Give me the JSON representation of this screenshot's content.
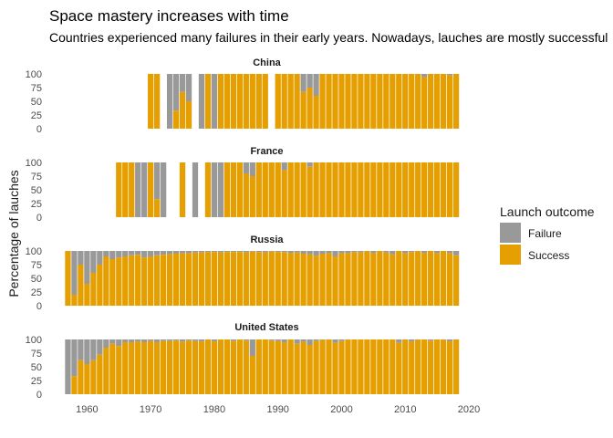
{
  "title": "Space mastery increases with time",
  "subtitle": "Countries experienced many failures in their early years. Nowadays, lauches are mostly successful",
  "chart_data": {
    "type": "bar",
    "stacked": true,
    "ylabel": "Percentage of lauches",
    "x_ticks": [
      1960,
      1970,
      1980,
      1990,
      2000,
      2010,
      2020
    ],
    "xlim": [
      1955.5,
      2021
    ],
    "y_ticks": [
      0,
      25,
      50,
      75,
      100
    ],
    "ylim": [
      0,
      100
    ],
    "legend": {
      "title": "Launch outcome",
      "position": "right",
      "entries": [
        {
          "label": "Failure",
          "color": "#999999"
        },
        {
          "label": "Success",
          "color": "#E69F00"
        }
      ]
    },
    "facets": [
      {
        "name": "China",
        "years": [
          1970,
          1971,
          1973,
          1974,
          1975,
          1976,
          1978,
          1979,
          1980,
          1981,
          1982,
          1983,
          1984,
          1985,
          1986,
          1987,
          1988,
          1990,
          1991,
          1992,
          1993,
          1994,
          1995,
          1996,
          1997,
          1998,
          1999,
          2000,
          2001,
          2002,
          2003,
          2004,
          2005,
          2006,
          2007,
          2008,
          2009,
          2010,
          2011,
          2012,
          2013,
          2014,
          2015,
          2016,
          2017,
          2018
        ],
        "success_pct": [
          100,
          100,
          0,
          33,
          67,
          50,
          0,
          100,
          0,
          100,
          100,
          100,
          100,
          100,
          100,
          100,
          100,
          100,
          100,
          100,
          100,
          67,
          75,
          60,
          100,
          100,
          100,
          100,
          100,
          100,
          100,
          100,
          100,
          100,
          100,
          100,
          100,
          100,
          100,
          100,
          94,
          100,
          100,
          100,
          97,
          100
        ]
      },
      {
        "name": "France",
        "years": [
          1965,
          1966,
          1967,
          1968,
          1969,
          1970,
          1971,
          1972,
          1975,
          1977,
          1979,
          1980,
          1981,
          1982,
          1983,
          1984,
          1985,
          1986,
          1987,
          1988,
          1989,
          1990,
          1991,
          1992,
          1993,
          1994,
          1995,
          1996,
          1997,
          1998,
          1999,
          2000,
          2001,
          2002,
          2003,
          2004,
          2005,
          2006,
          2007,
          2008,
          2009,
          2010,
          2011,
          2012,
          2013,
          2014,
          2015,
          2016,
          2017,
          2018
        ],
        "success_pct": [
          100,
          100,
          100,
          0,
          0,
          100,
          33,
          0,
          100,
          0,
          100,
          0,
          0,
          100,
          100,
          100,
          80,
          75,
          100,
          100,
          100,
          100,
          86,
          100,
          100,
          100,
          92,
          100,
          100,
          100,
          100,
          100,
          100,
          100,
          100,
          100,
          100,
          100,
          100,
          100,
          100,
          100,
          100,
          100,
          100,
          100,
          100,
          100,
          100,
          100
        ]
      },
      {
        "name": "Russia",
        "years": [
          1957,
          1958,
          1959,
          1960,
          1961,
          1962,
          1963,
          1964,
          1965,
          1966,
          1967,
          1968,
          1969,
          1970,
          1971,
          1972,
          1973,
          1974,
          1975,
          1976,
          1977,
          1978,
          1979,
          1980,
          1981,
          1982,
          1983,
          1984,
          1985,
          1986,
          1987,
          1988,
          1989,
          1990,
          1991,
          1992,
          1993,
          1994,
          1995,
          1996,
          1997,
          1998,
          1999,
          2000,
          2001,
          2002,
          2003,
          2004,
          2005,
          2006,
          2007,
          2008,
          2009,
          2010,
          2011,
          2012,
          2013,
          2014,
          2015,
          2016,
          2017,
          2018
        ],
        "success_pct": [
          100,
          20,
          75,
          40,
          60,
          75,
          90,
          85,
          88,
          90,
          92,
          93,
          88,
          90,
          92,
          93,
          94,
          95,
          96,
          96,
          97,
          97,
          98,
          98,
          97,
          98,
          98,
          98,
          97,
          99,
          98,
          97,
          99,
          98,
          98,
          96,
          97,
          95,
          94,
          91,
          95,
          96,
          90,
          96,
          96,
          98,
          97,
          100,
          96,
          100,
          97,
          94,
          100,
          96,
          98,
          100,
          96,
          100,
          96,
          100,
          96,
          92
        ]
      },
      {
        "name": "United States",
        "years": [
          1957,
          1958,
          1959,
          1960,
          1961,
          1962,
          1963,
          1964,
          1965,
          1966,
          1967,
          1968,
          1969,
          1970,
          1971,
          1972,
          1973,
          1974,
          1975,
          1976,
          1977,
          1978,
          1979,
          1980,
          1981,
          1982,
          1983,
          1984,
          1985,
          1986,
          1987,
          1988,
          1989,
          1990,
          1991,
          1992,
          1993,
          1994,
          1995,
          1996,
          1997,
          1998,
          1999,
          2000,
          2001,
          2002,
          2003,
          2004,
          2005,
          2006,
          2007,
          2008,
          2009,
          2010,
          2011,
          2012,
          2013,
          2014,
          2015,
          2016,
          2017,
          2018
        ],
        "success_pct": [
          0,
          33,
          62,
          55,
          62,
          72,
          85,
          92,
          88,
          95,
          95,
          96,
          95,
          97,
          95,
          97,
          97,
          98,
          96,
          98,
          97,
          96,
          100,
          96,
          100,
          100,
          97,
          100,
          98,
          70,
          100,
          100,
          98,
          97,
          95,
          100,
          92,
          96,
          90,
          97,
          99,
          100,
          94,
          97,
          100,
          100,
          100,
          100,
          100,
          100,
          100,
          100,
          94,
          100,
          96,
          100,
          100,
          98,
          100,
          100,
          96,
          100
        ]
      }
    ]
  }
}
